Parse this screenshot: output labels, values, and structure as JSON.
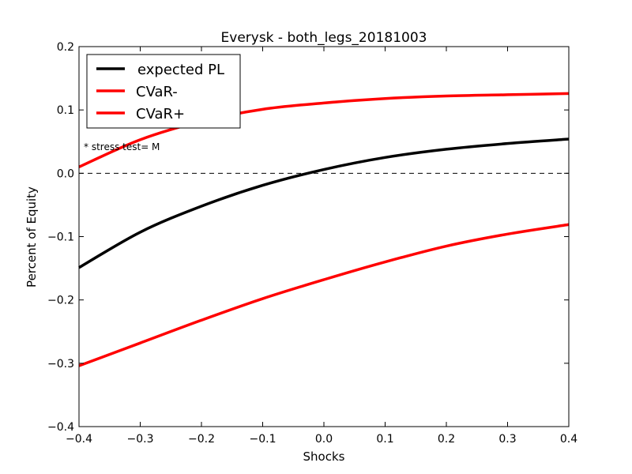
{
  "chart_data": {
    "type": "line",
    "title": "Everysk - both_legs_20181003",
    "xlabel": "Shocks",
    "ylabel": "Percent of Equity",
    "xlim": [
      -0.4,
      0.4
    ],
    "ylim": [
      -0.4,
      0.2
    ],
    "x_ticks": [
      "−0.4",
      "−0.3",
      "−0.2",
      "−0.1",
      "0.0",
      "0.1",
      "0.2",
      "0.3",
      "0.4"
    ],
    "y_ticks": [
      "0.2",
      "0.1",
      "0.0",
      "−0.1",
      "−0.2",
      "−0.3",
      "−0.4"
    ],
    "x_tick_values": [
      -0.4,
      -0.3,
      -0.2,
      -0.1,
      0.0,
      0.1,
      0.2,
      0.3,
      0.4
    ],
    "y_tick_values": [
      0.2,
      0.1,
      0.0,
      -0.1,
      -0.2,
      -0.3,
      -0.4
    ],
    "grid": false,
    "legend_position": "top-left",
    "zero_line": {
      "y": 0.0,
      "style": "dashed",
      "color": "#000000"
    },
    "annotation": "* stress test=  M",
    "x": [
      -0.4,
      -0.3,
      -0.2,
      -0.1,
      0.0,
      0.1,
      0.2,
      0.3,
      0.4
    ],
    "series": [
      {
        "name": "expected PL",
        "color": "#000000",
        "values": [
          -0.149,
          -0.093,
          -0.052,
          -0.019,
          0.006,
          0.025,
          0.038,
          0.047,
          0.054
        ]
      },
      {
        "name": "CVaR-",
        "color": "#ff0000",
        "values": [
          0.01,
          0.053,
          0.082,
          0.101,
          0.111,
          0.118,
          0.122,
          0.124,
          0.126
        ]
      },
      {
        "name": "CVaR+",
        "color": "#ff0000",
        "values": [
          -0.304,
          -0.268,
          -0.232,
          -0.198,
          -0.168,
          -0.14,
          -0.115,
          -0.096,
          -0.081
        ]
      }
    ]
  }
}
